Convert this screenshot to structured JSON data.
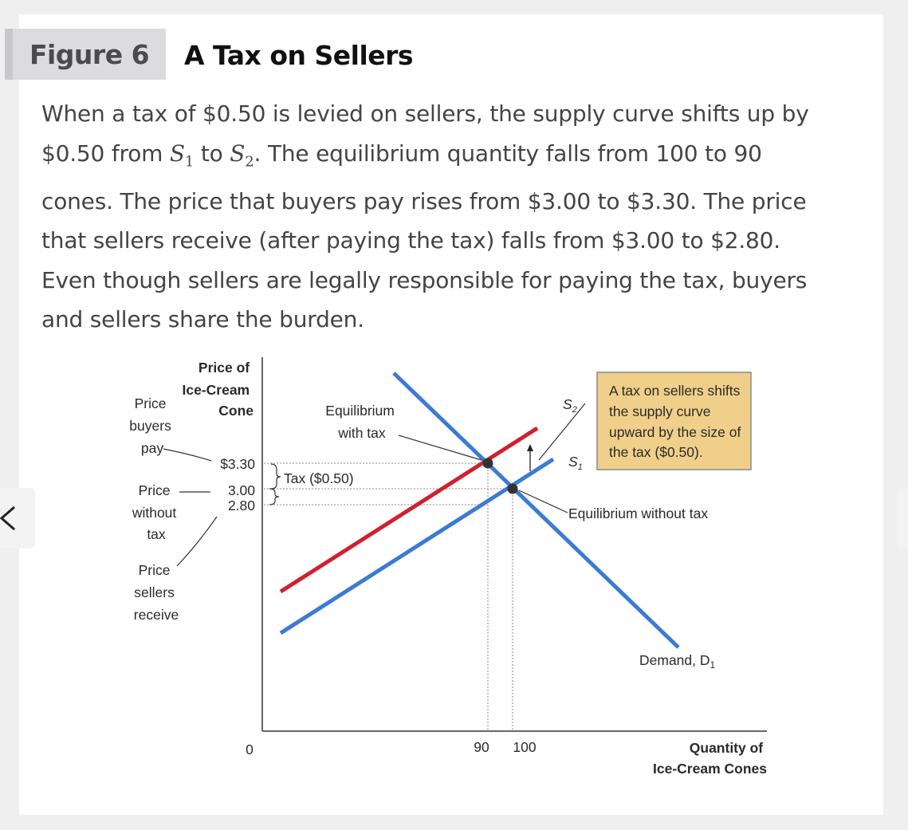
{
  "figure": {
    "label": "Figure 6",
    "title": "A Tax on Sellers"
  },
  "caption": {
    "line1": "When a tax of $0.50 is levied on sellers, the supply curve shifts up by",
    "line2_a": "$0.50 from ",
    "s1": "S",
    "s1_sub": "1",
    "line2_b": " to ",
    "s2": "S",
    "s2_sub": "2",
    "line2_c": ". The equilibrium quantity falls from 100 to 90",
    "line3": "cones. The price that buyers pay rises from $3.00 to $3.30. The price",
    "line4": "that sellers receive (after paying the tax) falls from $3.00 to $2.80.",
    "line5": "Even though sellers are legally responsible for paying the tax, buyers",
    "line6": "and sellers share the burden."
  },
  "diagram": {
    "y_axis_title": [
      "Price of",
      "Ice-Cream",
      "Cone"
    ],
    "x_axis_title": [
      "Quantity of",
      "Ice-Cream Cones"
    ],
    "origin_label": "0",
    "x_ticks": [
      "90",
      "100"
    ],
    "y_ticks": [
      "$3.30",
      "3.00",
      "2.80"
    ],
    "left_labels": {
      "price_buyers_pay": [
        "Price",
        "buyers",
        "pay"
      ],
      "price_without_tax": [
        "Price",
        "without",
        "tax"
      ],
      "price_sellers_receive": [
        "Price",
        "sellers",
        "receive"
      ]
    },
    "tax_label": "Tax ($0.50)",
    "equilibrium_with_tax": [
      "Equilibrium",
      "with tax"
    ],
    "equilibrium_without_tax": "Equilibrium without tax",
    "demand_label": "Demand, D",
    "demand_sub": "1",
    "s1_label": "S",
    "s1_sub": "1",
    "s2_label": "S",
    "s2_sub": "2",
    "note_box": [
      "A tax on sellers shifts",
      "the supply curve",
      "upward by the size of",
      "the tax ($0.50)."
    ],
    "colors": {
      "supply_curve": "#3a7bd5",
      "demand_curve": "#3a7bd5",
      "shifted_supply": "#d0202e",
      "note_bg": "#f0cf8a"
    }
  }
}
